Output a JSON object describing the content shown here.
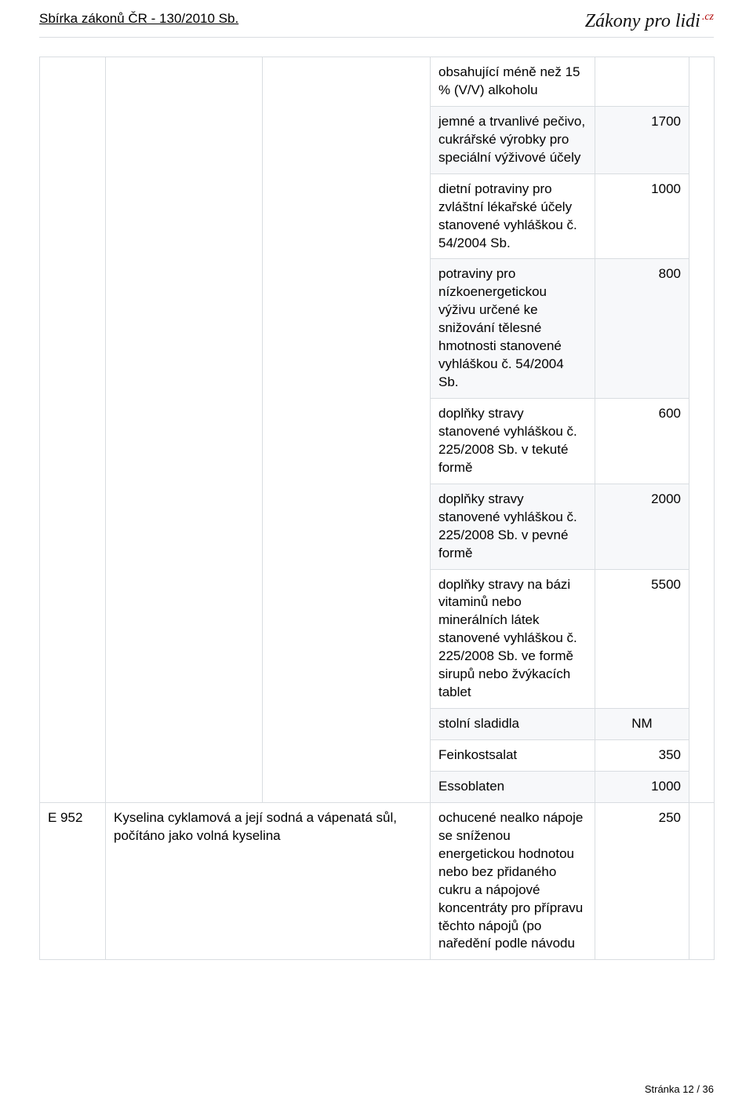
{
  "header": {
    "doc_title": "Sbírka zákonů ČR - 130/2010 Sb.",
    "brand_main": "Zákony pro lidi",
    "brand_suffix": ".cz"
  },
  "left_cols": {
    "code": "E 952",
    "substance": "Kyselina cyklamová a její sodná a vápenatá sůl, počítáno jako volná kyselina"
  },
  "rows": [
    {
      "desc": "obsahující méně než 15 % (V/V) alkoholu",
      "val": "",
      "shade": "odd"
    },
    {
      "desc": "jemné a trvanlivé pečivo, cukrářské výrobky pro speciální výživové účely",
      "val": "1700",
      "shade": "even"
    },
    {
      "desc": "dietní potraviny pro zvláštní lékařské účely stanovené vyhláškou č. 54/2004 Sb.",
      "val": "1000",
      "shade": "odd"
    },
    {
      "desc": "potraviny pro nízkoenergetickou výživu určené ke snižování tělesné hmotnosti stanovené vyhláškou č. 54/2004 Sb.",
      "val": "800",
      "shade": "even"
    },
    {
      "desc": "doplňky stravy stanovené vyhláškou č. 225/2008 Sb. v tekuté formě",
      "val": "600",
      "shade": "odd"
    },
    {
      "desc": "doplňky stravy stanovené vyhláškou č. 225/2008 Sb. v pevné formě",
      "val": "2000",
      "shade": "even"
    },
    {
      "desc": "doplňky stravy na bázi vitaminů nebo minerálních látek stanovené vyhláškou č. 225/2008 Sb. ve formě sirupů nebo žvýkacích tablet",
      "val": "5500",
      "shade": "odd"
    },
    {
      "desc": "stolní sladidla",
      "val": "NM",
      "shade": "even",
      "val_align": "ctr"
    },
    {
      "desc": "Feinkostsalat",
      "val": "350",
      "shade": "odd"
    },
    {
      "desc": "Essoblaten",
      "val": "1000",
      "shade": "even"
    }
  ],
  "last_row": {
    "desc": "ochucené nealko nápoje se sníženou energetickou hodnotou nebo bez přidaného cukru a nápojové koncentráty pro přípravu těchto nápojů (po naředění podle návodu",
    "val": "250",
    "shade": "odd"
  },
  "footer": {
    "page_label": "Stránka 12 / 36"
  },
  "colors": {
    "border": "#d9dde1",
    "row_alt_bg": "#f7f8fa",
    "text": "#000000",
    "brand_red": "#b00000"
  }
}
